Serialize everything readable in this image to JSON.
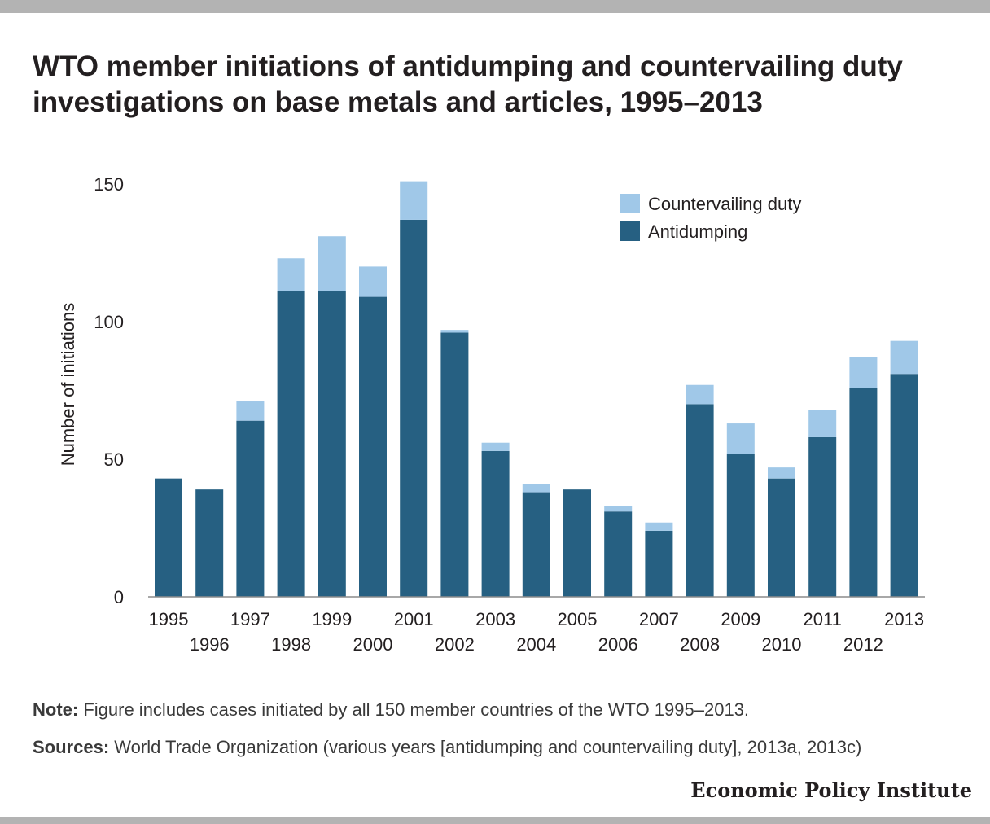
{
  "title": "WTO member initiations of antidumping and countervailing duty investigations on base metals and articles, 1995–2013",
  "note_label": "Note:",
  "note_text": " Figure includes cases initiated by all 150 member countries of the WTO 1995–2013.",
  "sources_label": "Sources:",
  "sources_text": " World Trade Organization (various years [antidumping and countervailing duty], 2013a, 2013c)",
  "brand": "Economic Policy Institute",
  "colors": {
    "antidumping": "#266082",
    "countervailing": "#a0c8e8",
    "text": "#231f20",
    "bars_top_strip": "#b3b3b3"
  },
  "chart_data": {
    "type": "bar",
    "stacked": true,
    "title": "WTO member initiations of antidumping and countervailing duty investigations on base metals and articles, 1995–2013",
    "ylabel": "Number of initiations",
    "xlabel": "",
    "ylim": [
      0,
      150
    ],
    "yticks": [
      0,
      50,
      100,
      150
    ],
    "legend_position": "top-right",
    "grid": false,
    "categories": [
      "1995",
      "1996",
      "1997",
      "1998",
      "1999",
      "2000",
      "2001",
      "2002",
      "2003",
      "2004",
      "2005",
      "2006",
      "2007",
      "2008",
      "2009",
      "2010",
      "2011",
      "2012",
      "2013"
    ],
    "series": [
      {
        "name": "Antidumping",
        "color": "#266082",
        "values": [
          43,
          39,
          64,
          111,
          111,
          109,
          137,
          96,
          53,
          38,
          39,
          31,
          24,
          70,
          52,
          43,
          58,
          76,
          81
        ]
      },
      {
        "name": "Countervailing duty",
        "color": "#a0c8e8",
        "values": [
          0,
          0,
          7,
          12,
          20,
          11,
          14,
          1,
          3,
          3,
          0,
          2,
          3,
          7,
          11,
          4,
          10,
          11,
          12
        ]
      }
    ],
    "legend_order": [
      "Countervailing duty",
      "Antidumping"
    ]
  }
}
